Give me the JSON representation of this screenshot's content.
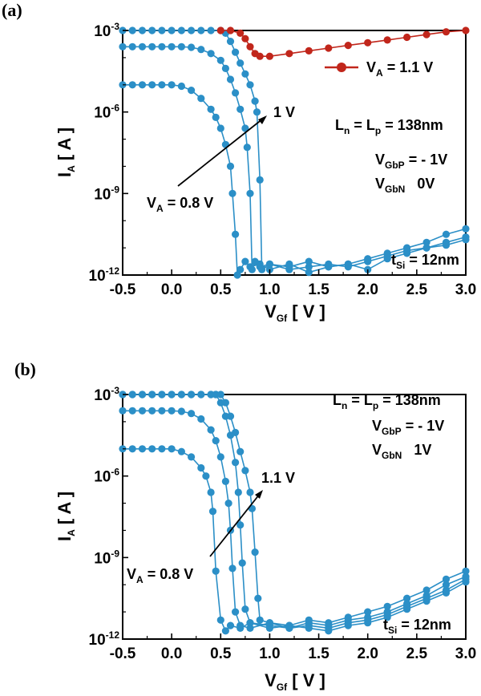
{
  "colors": {
    "blue": "#2b8fc7",
    "red": "#c1261b",
    "axis": "#000000"
  },
  "chart_data": [
    {
      "type": "line",
      "panel_label": "(a)",
      "xlabel": "V",
      "xlabel_sub": "Gf",
      "xlabel_unit": " [ V ]",
      "ylabel": "I",
      "ylabel_sub": "A",
      "ylabel_unit": " [ A ]",
      "xlim": [
        -0.5,
        3.0
      ],
      "ylim_log10": [
        -12,
        -3
      ],
      "x_ticks": [
        "-0.5",
        "0.0",
        "0.5",
        "1.0",
        "1.5",
        "2.0",
        "2.5",
        "3.0"
      ],
      "y_ticks": [
        {
          "base": "10",
          "exp": "-12",
          "value": -12
        },
        {
          "base": "10",
          "exp": "-9",
          "value": -9
        },
        {
          "base": "10",
          "exp": "-6",
          "value": -6
        },
        {
          "base": "10",
          "exp": "-3",
          "value": -3
        }
      ],
      "series": [
        {
          "color": "blue",
          "x": [
            -0.5,
            -0.4,
            -0.3,
            -0.2,
            -0.1,
            0.0,
            0.1,
            0.2,
            0.3,
            0.4,
            0.45,
            0.5,
            0.55,
            0.6,
            0.62,
            0.65,
            0.67,
            0.7,
            0.75,
            0.8,
            0.9,
            1.0,
            1.2,
            1.4,
            1.6,
            1.8,
            2.0,
            2.2,
            2.4,
            2.6,
            2.8,
            3.0
          ],
          "log10_y": [
            -5.0,
            -5.0,
            -5.0,
            -5.0,
            -5.0,
            -5.0,
            -5.05,
            -5.2,
            -5.5,
            -5.9,
            -6.2,
            -6.6,
            -7.2,
            -8.0,
            -9.0,
            -10.5,
            -12,
            -11.8,
            -11.5,
            -11.7,
            -11.6,
            -11.8,
            -11.6,
            -11.9,
            -11.7,
            -11.6,
            -11.8,
            -11.4,
            -11.2,
            -11.0,
            -10.9,
            -10.7
          ]
        },
        {
          "color": "blue",
          "x": [
            -0.5,
            -0.4,
            -0.3,
            -0.2,
            -0.1,
            0.0,
            0.1,
            0.2,
            0.3,
            0.4,
            0.5,
            0.55,
            0.6,
            0.65,
            0.7,
            0.75,
            0.77,
            0.8,
            0.82,
            0.85,
            0.9,
            1.0,
            1.2,
            1.4,
            1.6,
            1.8,
            2.0,
            2.2,
            2.4,
            2.6,
            2.8,
            3.0
          ],
          "log10_y": [
            -3.6,
            -3.6,
            -3.6,
            -3.6,
            -3.6,
            -3.6,
            -3.6,
            -3.62,
            -3.7,
            -3.85,
            -4.1,
            -4.4,
            -4.8,
            -5.3,
            -5.9,
            -6.6,
            -7.3,
            -9.0,
            -11.8,
            -11.5,
            -11.7,
            -11.6,
            -11.8,
            -11.7,
            -11.6,
            -11.7,
            -11.5,
            -11.3,
            -11.1,
            -11.0,
            -10.8,
            -10.6
          ]
        },
        {
          "color": "blue",
          "x": [
            -0.5,
            -0.4,
            -0.3,
            -0.2,
            -0.1,
            0.0,
            0.1,
            0.2,
            0.3,
            0.4,
            0.5,
            0.55,
            0.6,
            0.65,
            0.7,
            0.75,
            0.8,
            0.85,
            0.87,
            0.9,
            0.92,
            1.0,
            1.2,
            1.4,
            1.6,
            1.8,
            2.0,
            2.2,
            2.4,
            2.6,
            2.8,
            3.0
          ],
          "log10_y": [
            -3.0,
            -3.0,
            -3.0,
            -3.0,
            -3.0,
            -3.0,
            -3.0,
            -3.0,
            -3.0,
            -3.0,
            -3.0,
            -3.1,
            -3.4,
            -3.8,
            -4.2,
            -4.6,
            -5.0,
            -5.6,
            -6.0,
            -8.5,
            -11.8,
            -11.6,
            -11.7,
            -11.5,
            -11.7,
            -11.6,
            -11.4,
            -11.2,
            -11.0,
            -10.8,
            -10.5,
            -10.3
          ]
        },
        {
          "color": "red",
          "x": [
            0.5,
            0.6,
            0.7,
            0.75,
            0.8,
            0.85,
            0.9,
            1.0,
            1.2,
            1.4,
            1.6,
            1.8,
            2.0,
            2.2,
            2.4,
            2.6,
            2.8,
            3.0
          ],
          "log10_y": [
            -3.0,
            -3.0,
            -3.1,
            -3.3,
            -3.6,
            -3.85,
            -3.95,
            -3.95,
            -3.85,
            -3.75,
            -3.65,
            -3.55,
            -3.45,
            -3.35,
            -3.25,
            -3.15,
            -3.05,
            -3.0
          ]
        }
      ],
      "legend": {
        "label": "V",
        "sub": "A",
        "rest": " = 1.1 V"
      },
      "annotations": {
        "one_v": "1 V",
        "va_low_main": "V",
        "va_low_sub": "A",
        "va_low_rest": " = 0.8 V",
        "length_l": "L",
        "length_n": "n",
        "length_mid": " = L",
        "length_p": "p",
        "length_val": " = 138nm",
        "vgbp_main": "V",
        "vgbp_sub": "GbP",
        "vgbp_val": " = - 1V",
        "vgbn_main": "V",
        "vgbn_sub": "GbN",
        "vgbn_val": "   0V",
        "tsi_main": "t",
        "tsi_sub": "Si",
        "tsi_val": " = 12nm"
      }
    },
    {
      "type": "line",
      "panel_label": "(b)",
      "xlabel": "V",
      "xlabel_sub": "Gf",
      "xlabel_unit": " [ V ]",
      "ylabel": "I",
      "ylabel_sub": "A",
      "ylabel_unit": " [ A ]",
      "xlim": [
        -0.5,
        3.0
      ],
      "ylim_log10": [
        -12,
        -3
      ],
      "x_ticks": [
        "-0.5",
        "0.0",
        "0.5",
        "1.0",
        "1.5",
        "2.0",
        "2.5",
        "3.0"
      ],
      "y_ticks": [
        {
          "base": "10",
          "exp": "-12",
          "value": -12
        },
        {
          "base": "10",
          "exp": "-9",
          "value": -9
        },
        {
          "base": "10",
          "exp": "-6",
          "value": -6
        },
        {
          "base": "10",
          "exp": "-3",
          "value": -3
        }
      ],
      "series": [
        {
          "color": "blue",
          "x": [
            -0.5,
            -0.4,
            -0.3,
            -0.2,
            -0.1,
            0.0,
            0.1,
            0.2,
            0.3,
            0.35,
            0.4,
            0.42,
            0.45,
            0.5,
            0.55,
            0.6,
            0.7,
            0.8,
            1.0,
            1.2,
            1.4,
            1.6,
            1.8,
            2.0,
            2.2,
            2.4,
            2.6,
            2.8,
            3.0
          ],
          "log10_y": [
            -5.0,
            -5.0,
            -5.0,
            -5.0,
            -5.0,
            -5.0,
            -5.1,
            -5.3,
            -5.7,
            -6.0,
            -6.6,
            -7.3,
            -9.5,
            -11.3,
            -11.7,
            -11.5,
            -11.6,
            -11.4,
            -11.6,
            -11.5,
            -11.6,
            -11.7,
            -11.5,
            -11.4,
            -11.2,
            -10.9,
            -10.6,
            -10.3,
            -9.9
          ]
        },
        {
          "color": "blue",
          "x": [
            -0.5,
            -0.4,
            -0.3,
            -0.2,
            -0.1,
            0.0,
            0.1,
            0.2,
            0.3,
            0.4,
            0.45,
            0.5,
            0.55,
            0.58,
            0.6,
            0.62,
            0.65,
            0.7,
            0.8,
            1.0,
            1.2,
            1.4,
            1.6,
            1.8,
            2.0,
            2.2,
            2.4,
            2.6,
            2.8,
            3.0
          ],
          "log10_y": [
            -3.6,
            -3.6,
            -3.6,
            -3.6,
            -3.6,
            -3.6,
            -3.62,
            -3.7,
            -3.9,
            -4.3,
            -4.7,
            -5.3,
            -6.2,
            -7.0,
            -8.0,
            -9.4,
            -11.0,
            -11.5,
            -11.6,
            -11.4,
            -11.6,
            -11.5,
            -11.6,
            -11.4,
            -11.3,
            -11.1,
            -10.8,
            -10.5,
            -10.2,
            -9.8
          ]
        },
        {
          "color": "blue",
          "x": [
            -0.5,
            -0.4,
            -0.3,
            -0.2,
            -0.1,
            0.0,
            0.1,
            0.2,
            0.3,
            0.4,
            0.45,
            0.5,
            0.55,
            0.6,
            0.65,
            0.68,
            0.7,
            0.72,
            0.75,
            0.8,
            1.0,
            1.2,
            1.4,
            1.6,
            1.8,
            2.0,
            2.2,
            2.4,
            2.6,
            2.8,
            3.0
          ],
          "log10_y": [
            -3.0,
            -3.0,
            -3.0,
            -3.0,
            -3.0,
            -3.0,
            -3.0,
            -3.0,
            -3.0,
            -3.0,
            -3.0,
            -3.3,
            -3.8,
            -4.5,
            -5.5,
            -6.6,
            -7.8,
            -9.2,
            -10.9,
            -11.4,
            -11.5,
            -11.6,
            -11.4,
            -11.5,
            -11.3,
            -11.2,
            -11.0,
            -10.7,
            -10.4,
            -10.0,
            -9.7
          ]
        },
        {
          "color": "blue",
          "x": [
            -0.5,
            -0.4,
            -0.3,
            -0.2,
            -0.1,
            0.0,
            0.1,
            0.2,
            0.3,
            0.4,
            0.45,
            0.5,
            0.55,
            0.6,
            0.65,
            0.7,
            0.75,
            0.8,
            0.82,
            0.85,
            0.88,
            0.9,
            1.0,
            1.2,
            1.4,
            1.6,
            1.8,
            2.0,
            2.2,
            2.4,
            2.6,
            2.8,
            3.0
          ],
          "log10_y": [
            -3.0,
            -3.0,
            -3.0,
            -3.0,
            -3.0,
            -3.0,
            -3.0,
            -3.0,
            -3.0,
            -3.0,
            -3.0,
            -3.0,
            -3.3,
            -3.8,
            -4.4,
            -5.1,
            -5.8,
            -6.6,
            -7.2,
            -8.8,
            -10.5,
            -11.3,
            -11.4,
            -11.5,
            -11.3,
            -11.4,
            -11.2,
            -11.0,
            -10.8,
            -10.5,
            -10.2,
            -9.8,
            -9.5
          ]
        }
      ],
      "annotations": {
        "one_one_v": "1.1 V",
        "va_low_main": "V",
        "va_low_sub": "A",
        "va_low_rest": " = 0.8 V",
        "length_l": "L",
        "length_n": "n",
        "length_mid": " = L",
        "length_p": "p",
        "length_val": " = 138nm",
        "vgbp_main": "V",
        "vgbp_sub": "GbP",
        "vgbp_val": " = - 1V",
        "vgbn_main": "V",
        "vgbn_sub": "GbN",
        "vgbn_val": "   1V",
        "tsi_main": "t",
        "tsi_sub": "Si",
        "tsi_val": " = 12nm"
      }
    }
  ]
}
